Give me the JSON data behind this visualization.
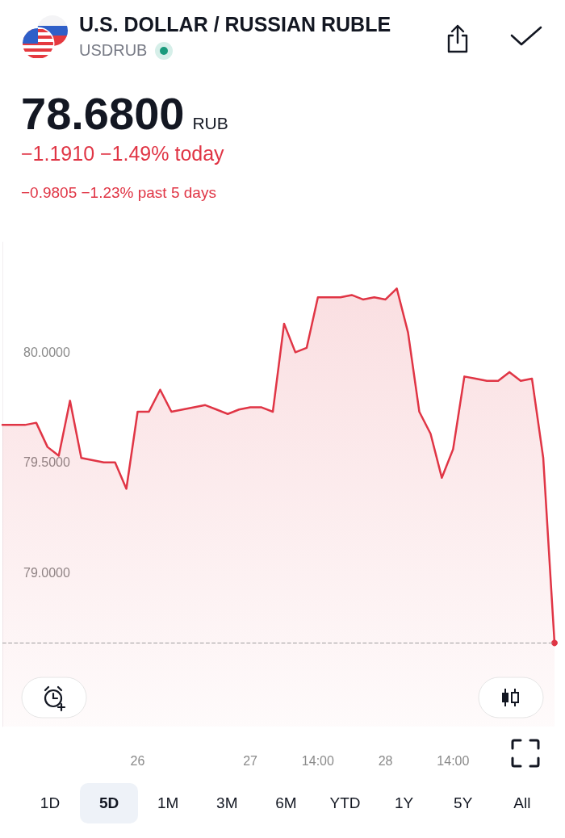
{
  "chart_data": {
    "type": "area",
    "title": "U.S. DOLLAR / RUSSIAN RUBLE",
    "subtitle": "USDRUB",
    "annotations": [
      "78.6800",
      "RUB",
      "−1.1910 −1.49% today",
      "−0.9805 −1.23% past 5 days",
      "1D",
      "5D",
      "1M",
      "3M",
      "6M",
      "YTD",
      "1Y",
      "5Y",
      "All"
    ],
    "categories": [
      null,
      null,
      null,
      null,
      null,
      null,
      null,
      null,
      null,
      null,
      null,
      null,
      "26",
      null,
      null,
      null,
      null,
      null,
      null,
      null,
      null,
      null,
      "27",
      null,
      null,
      null,
      null,
      null,
      "14:00",
      null,
      null,
      null,
      null,
      null,
      "28",
      null,
      null,
      null,
      null,
      null,
      "14:00",
      null,
      null,
      null,
      null,
      null,
      null,
      null,
      null,
      null
    ],
    "series": [
      {
        "color": "#e03545",
        "values": [
          79.67,
          79.67,
          79.67,
          79.68,
          79.57,
          79.53,
          79.78,
          79.52,
          79.51,
          79.5,
          79.5,
          79.38,
          79.73,
          79.73,
          79.83,
          79.73,
          79.74,
          79.75,
          79.76,
          79.74,
          79.72,
          79.74,
          79.75,
          79.75,
          79.73,
          80.13,
          80.0,
          80.02,
          80.25,
          80.25,
          80.25,
          80.26,
          80.24,
          80.25,
          80.24,
          80.29,
          80.09,
          79.73,
          79.63,
          79.43,
          79.56,
          79.89,
          79.88,
          79.87,
          79.87,
          79.91,
          79.87,
          79.88,
          79.52,
          78.68
        ]
      }
    ],
    "ylim": [
      78.3,
      80.5
    ],
    "yticks": [
      {
        "value": 79,
        "label": "79.0000"
      },
      {
        "value": 79.5,
        "label": "79.5000"
      },
      {
        "value": 80,
        "label": "80.0000"
      }
    ],
    "ref_lines": [
      {
        "axis": "y",
        "value": 78.68,
        "color": "#9e9e9e",
        "line_style": "dashed"
      }
    ],
    "grid": false,
    "marker": "none",
    "line_style": "solid"
  }
}
